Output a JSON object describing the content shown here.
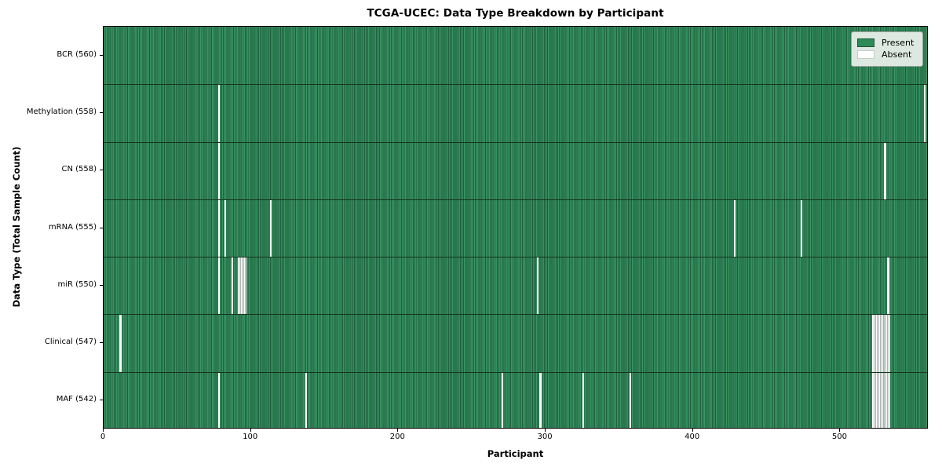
{
  "title": "TCGA-UCEC: Data Type Breakdown by Participant",
  "chart_data": {
    "type": "heatmap",
    "title": "TCGA-UCEC: Data Type Breakdown by Participant",
    "xlabel": "Participant",
    "ylabel": "Data Type (Total Sample Count)",
    "x_ticks": [
      0,
      100,
      200,
      300,
      400,
      500
    ],
    "x_range": [
      0,
      560
    ],
    "n_participants": 560,
    "grid": false,
    "legend_position": "upper right",
    "legend": [
      {
        "label": "Present",
        "color": "#2e8b57"
      },
      {
        "label": "Absent",
        "color": "#ffffff"
      }
    ],
    "colors": {
      "present": "#2e8b57",
      "present_edge": "#205f3e",
      "absent": "#ffffff"
    },
    "rows": [
      {
        "label": "BCR (560)",
        "data_type": "BCR",
        "total_samples": 560,
        "absent_participants": []
      },
      {
        "label": "Methylation (558)",
        "data_type": "Methylation",
        "total_samples": 558,
        "absent_participants": [
          78,
          557
        ]
      },
      {
        "label": "CN (558)",
        "data_type": "CN",
        "total_samples": 558,
        "absent_participants": [
          78,
          530
        ]
      },
      {
        "label": "mRNA (555)",
        "data_type": "mRNA",
        "total_samples": 555,
        "absent_participants": [
          78,
          82,
          113,
          428,
          473
        ]
      },
      {
        "label": "miR (550)",
        "data_type": "miR",
        "total_samples": 550,
        "absent_participants": [
          78,
          87,
          91,
          92,
          93,
          94,
          95,
          96,
          294,
          532
        ]
      },
      {
        "label": "Clinical (547)",
        "data_type": "Clinical",
        "total_samples": 547,
        "absent_participants": [
          11,
          522,
          523,
          524,
          525,
          526,
          527,
          528,
          529,
          530,
          531,
          532,
          533
        ]
      },
      {
        "label": "MAF (542)",
        "data_type": "MAF",
        "total_samples": 542,
        "absent_participants": [
          78,
          137,
          270,
          296,
          325,
          357,
          522,
          523,
          524,
          525,
          526,
          527,
          528,
          529,
          530,
          531,
          532,
          533
        ]
      }
    ]
  }
}
